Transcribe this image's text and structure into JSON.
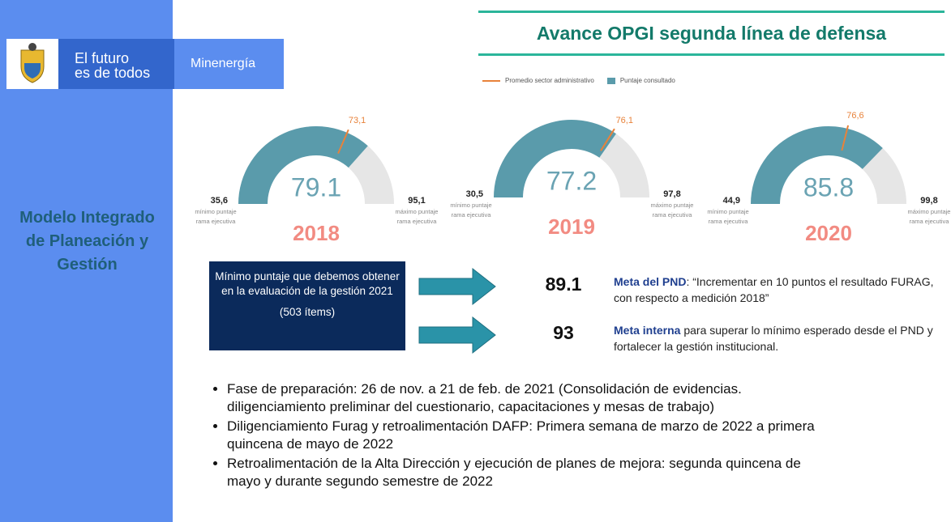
{
  "header": {
    "slogan_lines": [
      "El futuro",
      "es de todos"
    ],
    "ministry": "Minenergía"
  },
  "sidebar": {
    "title": "Modelo Integrado de Planeación y Gestión"
  },
  "title": "Avance OPGI segunda línea de defensa",
  "legend": {
    "average": "Promedio sector administrativo",
    "score": "Puntaje consultado"
  },
  "min_caption": [
    "mínimo puntaje",
    "rama ejecutiva"
  ],
  "max_caption": [
    "máximo puntaje",
    "rama ejecutiva"
  ],
  "gauges": [
    {
      "year": "2018",
      "score": 79.1,
      "average": {
        "value": 73.1,
        "label": "73,1"
      },
      "min": {
        "value": 35.6,
        "label": "35,6"
      },
      "max": {
        "value": 95.1,
        "label": "95,1"
      }
    },
    {
      "year": "2019",
      "score": 77.2,
      "average": {
        "value": 76.1,
        "label": "76,1"
      },
      "min": {
        "value": 30.5,
        "label": "30,5"
      },
      "max": {
        "value": 97.8,
        "label": "97,8"
      }
    },
    {
      "year": "2020",
      "score": 85.8,
      "average": {
        "value": 76.6,
        "label": "76,6"
      },
      "min": {
        "value": 44.9,
        "label": "44,9"
      },
      "max": {
        "value": 99.8,
        "label": "99,8"
      }
    }
  ],
  "box": {
    "text": "Mínimo puntaje que debemos obtener en la evaluación de la gestión 2021",
    "items": "(503 ítems)"
  },
  "targets": [
    {
      "value": 89.1,
      "label": "Meta del PND",
      "text": ": “Incrementar en 10 puntos el resultado FURAG, con respecto a medición 2018”"
    },
    {
      "value": 93,
      "label": "Meta interna",
      "text": " para superar lo mínimo esperado desde el PND y fortalecer la gestión institucional."
    }
  ],
  "bullets": [
    [
      "Fase de preparación: 26 de nov. a 21 de feb. de 2021 (Consolidación de evidencias.",
      "diligenciamiento preliminar del cuestionario, capacitaciones y mesas de trabajo)"
    ],
    [
      "Diligenciamiento Furag y retroalimentación DAFP: Primera semana de marzo de 2022 a primera",
      "quincena de mayo de 2022"
    ],
    [
      "Retroalimentación de la Alta Dirección y ejecución de planes de mejora: segunda quincena de",
      "mayo y durante segundo semestre de 2022"
    ]
  ]
}
